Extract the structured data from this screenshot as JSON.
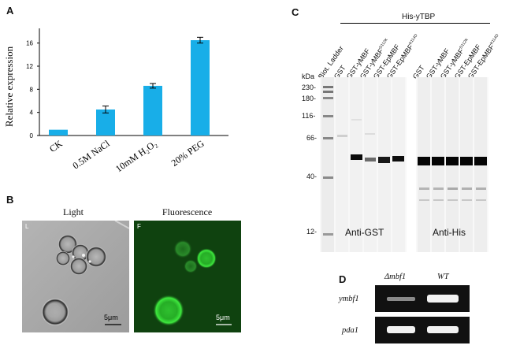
{
  "panels": {
    "a": {
      "letter": "A",
      "ylabel": "Relative expression",
      "y_ticks": [
        "0",
        "4",
        "8",
        "12",
        "16"
      ],
      "bar_color": "#18aee8"
    },
    "b": {
      "letter": "B",
      "light_title": "Light",
      "fluor_title": "Fluorescence",
      "light_corner": "L",
      "fluor_corner": "F",
      "scale_left": "5μm",
      "scale_right": "5μm"
    },
    "c": {
      "letter": "C",
      "header": "His-yTBP",
      "kda_unit": "kDa",
      "kda_marks": [
        "230-",
        "180-",
        "116-",
        "66-",
        "40-",
        "12-"
      ],
      "lanes_left": [
        "Biot. Ladder",
        "GST",
        "GST-yMBF",
        "GST-yMBF",
        "GST-EpMBF",
        "GST-EpMBF"
      ],
      "lanes_right": [
        "GST",
        "GST-yMBF",
        "GST-yMBF",
        "GST-EpMBF",
        "GST-EpMBF"
      ],
      "sup_left": [
        "",
        "",
        "",
        "D112K",
        "",
        "K114D"
      ],
      "sup_right": [
        "",
        "",
        "D112K",
        "",
        "K114D"
      ],
      "anti_gst": "Anti-GST",
      "anti_his": "Anti-His"
    },
    "d": {
      "letter": "D",
      "col1": "Δmbf1",
      "col2": "WT",
      "row1": "ymbf1",
      "row2": "pda1"
    }
  },
  "chart_data": {
    "type": "bar",
    "categories": [
      "CK",
      "0.5M NaCl",
      "10mM H₂O₂",
      "20% PEG"
    ],
    "values": [
      1.0,
      4.5,
      8.6,
      16.5
    ],
    "errors": [
      0.0,
      0.6,
      0.4,
      0.5
    ],
    "title": "",
    "xlabel": "",
    "ylabel": "Relative expression",
    "ylim": [
      0,
      18
    ],
    "grid": false
  }
}
